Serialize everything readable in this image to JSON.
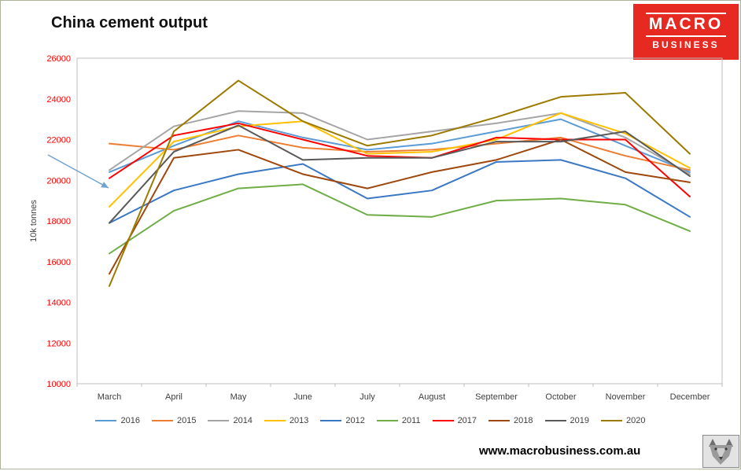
{
  "title": "China cement output",
  "logo": {
    "line1": "MACRO",
    "line2": "BUSINESS",
    "bg_color": "#e62a22"
  },
  "footer": {
    "url": "www.macrobusiness.com.au"
  },
  "chart_data": {
    "type": "line",
    "title": "China cement output",
    "xlabel": "",
    "ylabel": "10k tonnes",
    "ylim": [
      10000,
      26000
    ],
    "ytick_step": 2000,
    "ytick_color": "#ff0000",
    "xtick_color": "#404040",
    "plot_border_color": "#bfbfbf",
    "grid": false,
    "legend_position": "bottom",
    "categories": [
      "March",
      "April",
      "May",
      "June",
      "July",
      "August",
      "September",
      "October",
      "November",
      "December"
    ],
    "series": [
      {
        "name": "2016",
        "color": "#5b9bd5",
        "values": [
          20400,
          21700,
          22900,
          22100,
          21500,
          21800,
          22400,
          23000,
          21700,
          20400
        ]
      },
      {
        "name": "2015",
        "color": "#ed7d31",
        "values": [
          21800,
          21500,
          22200,
          21600,
          21400,
          21500,
          21800,
          22100,
          21200,
          20500
        ]
      },
      {
        "name": "2014",
        "color": "#a5a5a5",
        "values": [
          20500,
          22650,
          23400,
          23300,
          22000,
          22400,
          22800,
          23300,
          22100,
          20300
        ]
      },
      {
        "name": "2013",
        "color": "#ffc000",
        "values": [
          18700,
          21900,
          22650,
          22900,
          21300,
          21400,
          22000,
          23300,
          22300,
          20600
        ]
      },
      {
        "name": "2012",
        "color": "#3b78c3",
        "values": [
          17900,
          19500,
          20300,
          20800,
          19100,
          19500,
          20900,
          21000,
          20100,
          18200
        ]
      },
      {
        "name": "2011",
        "color": "#70ad47",
        "values": [
          16400,
          18500,
          19600,
          19800,
          18300,
          18200,
          19000,
          19100,
          18800,
          17500
        ]
      },
      {
        "name": "2017",
        "color": "#ff0000",
        "values": [
          20100,
          22200,
          22800,
          22000,
          21200,
          21100,
          22100,
          22000,
          22000,
          19200
        ]
      },
      {
        "name": "2018",
        "color": "#9e480e",
        "values": [
          15400,
          21100,
          21500,
          20300,
          19600,
          20400,
          21000,
          22000,
          20400,
          19900
        ]
      },
      {
        "name": "2019",
        "color": "#595959",
        "values": [
          17900,
          21400,
          22700,
          21000,
          21100,
          21100,
          21900,
          21900,
          22400,
          20200
        ]
      },
      {
        "name": "2020",
        "color": "#9c7a00",
        "values": [
          14800,
          22400,
          24900,
          22900,
          21700,
          22200,
          23100,
          24100,
          24300,
          21300
        ]
      }
    ],
    "annotation_arrow": {
      "type": "arrow",
      "points_to": "March",
      "color": "#6fa2cf",
      "x1": 60,
      "y1": 196,
      "x2": 137,
      "y2": 238
    }
  }
}
